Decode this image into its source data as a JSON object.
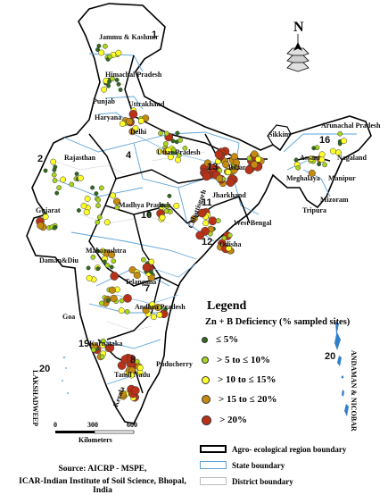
{
  "legend": {
    "title": "Legend",
    "subtitle": "Zn + B  Deficiency (% sampled sites)",
    "classes": [
      {
        "label": "≤ 5%",
        "color": "#2f6b1e"
      },
      {
        "label": "> 5 to ≤ 10%",
        "color": "#a9d51a"
      },
      {
        "label": "> 10 to ≤ 15%",
        "color": "#ffff2a"
      },
      {
        "label": "> 15 to ≤ 20%",
        "color": "#c58a10"
      },
      {
        "label": "> 20%",
        "color": "#b8321a"
      }
    ],
    "boundaries": [
      {
        "label": "Agro- ecological region boundary",
        "color": "#000000"
      },
      {
        "label": "State boundary",
        "color": "#5ea3d8"
      },
      {
        "label": "District boundary",
        "color": "#bbbbbb"
      }
    ]
  },
  "states": {
    "jk": "Jammu & Kashmir",
    "hp": "Himachal Pradesh",
    "uk": "Uttrakhand",
    "pb": "Punjab",
    "hr": "Haryana",
    "dl": "Delhi",
    "raj": "Rajasthan",
    "up": "Uttar Pradesh",
    "bih": "Bihar",
    "jh": "Jharkhand",
    "wb": "West Bengal",
    "sik": "Sikkim",
    "ap_ne": "Arunachal Pradesh",
    "as": "Assam",
    "nl": "Nagaland",
    "ml": "Meghalaya",
    "mn": "Manipur",
    "mz": "Mizoram",
    "tr": "Tripura",
    "guj": "Gujarat",
    "mp": "Madhya Pradesh",
    "cg": "Chhattisgarh",
    "od": "Odisha",
    "mh": "Maharashtra",
    "dd": "Daman&Diu",
    "tg": "Telangana",
    "ap": "Andhra Pradesh",
    "goa": "Goa",
    "ka": "Karnataka",
    "tn": "Tamil Nadu",
    "kl": "Kerala",
    "py": "Puducherry",
    "ld": "LAKSHADWEEP",
    "an": "ANDAMAN & NICOBAR"
  },
  "regions": {
    "r1": "1",
    "r2": "2",
    "r4": "4",
    "r7": "7",
    "r8": "8",
    "r10": "10",
    "r11": "11",
    "r12": "12",
    "r13": "13",
    "r16": "16",
    "r19": "19",
    "r20a": "20",
    "r20b": "20"
  },
  "compass": {
    "north": "N"
  },
  "scale": {
    "ticks": [
      "0",
      "300",
      "600"
    ],
    "unit": "Kilometers"
  },
  "source": {
    "line1": "Source: AICRP - MSPE,",
    "line2": "ICAR-Indian Institute of Soil Science, Bhopal, India"
  }
}
